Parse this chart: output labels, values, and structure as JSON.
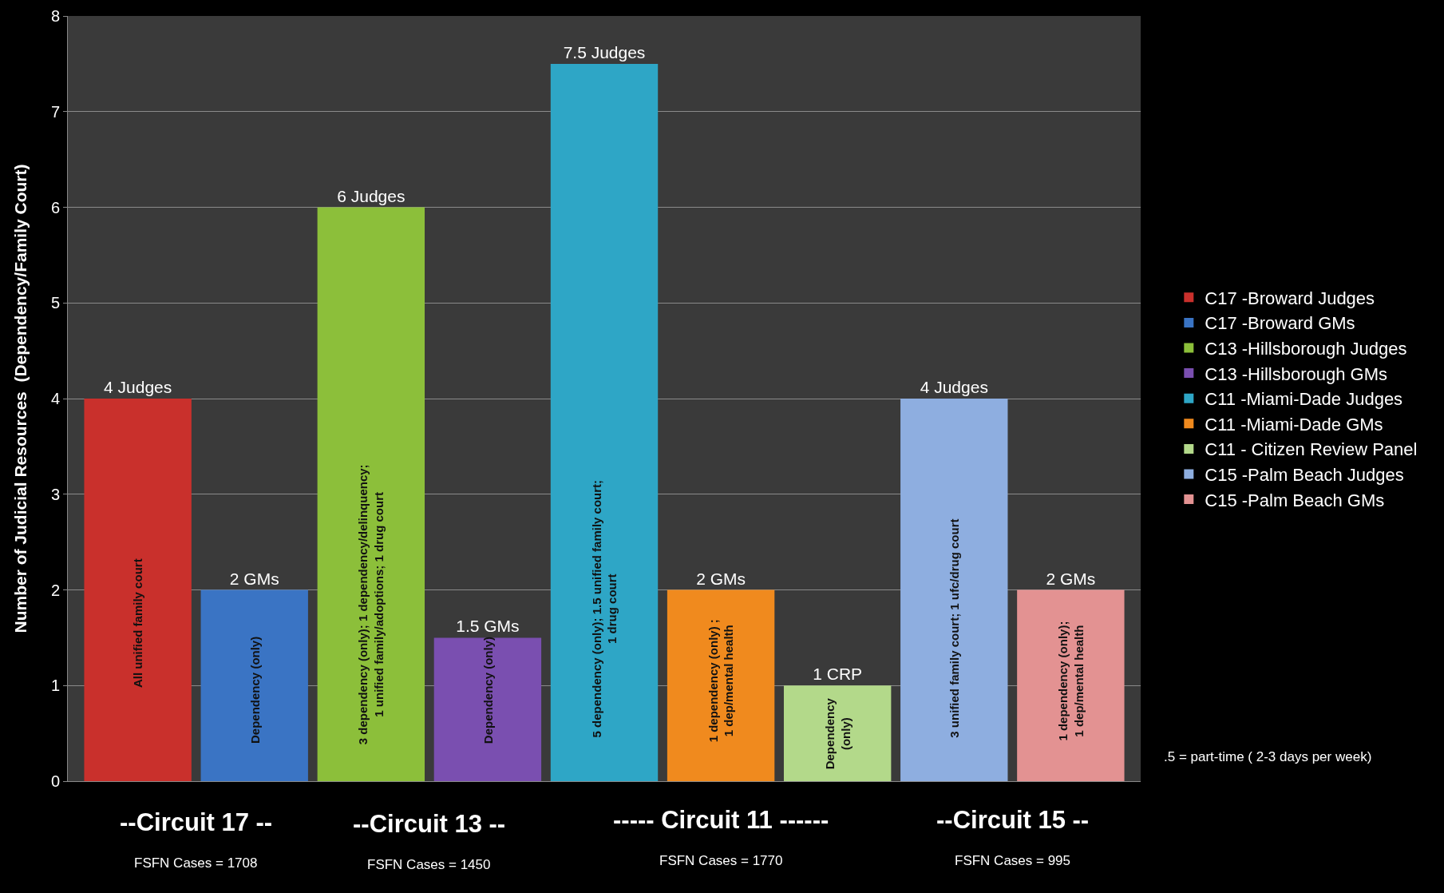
{
  "chart_data": {
    "type": "bar",
    "ylabel": "Number of Judicial Resources  (Dependency/Family Court)",
    "categories": [
      null,
      null,
      null,
      null,
      null,
      null,
      null,
      null,
      null
    ],
    "ylim": [
      0,
      8
    ],
    "yticks": [
      0,
      1,
      2,
      3,
      4,
      5,
      6,
      7,
      8
    ],
    "grid": "y",
    "legend": "right",
    "series": [
      {
        "name": "C17 -Broward Judges",
        "color": "#c9302c",
        "values": [
          4,
          null,
          null,
          null,
          null,
          null,
          null,
          null,
          null
        ],
        "value_labels": [
          "4 Judges",
          null,
          null,
          null,
          null,
          null,
          null,
          null,
          null
        ]
      },
      {
        "name": "C17 -Broward GMs",
        "color": "#3a74c4",
        "values": [
          null,
          2,
          null,
          null,
          null,
          null,
          null,
          null,
          null
        ],
        "value_labels": [
          null,
          "2 GMs",
          null,
          null,
          null,
          null,
          null,
          null,
          null
        ]
      },
      {
        "name": "C13 -Hillsborough Judges",
        "color": "#8cbf3a",
        "values": [
          null,
          null,
          6,
          null,
          null,
          null,
          null,
          null,
          null
        ],
        "value_labels": [
          null,
          null,
          "6 Judges",
          null,
          null,
          null,
          null,
          null,
          null
        ]
      },
      {
        "name": "C13 -Hillsborough GMs",
        "color": "#7a4fb0",
        "values": [
          null,
          null,
          null,
          1.5,
          null,
          null,
          null,
          null,
          null
        ],
        "value_labels": [
          null,
          null,
          null,
          "1.5 GMs",
          null,
          null,
          null,
          null,
          null
        ]
      },
      {
        "name": "C11 -Miami-Dade Judges",
        "color": "#2ea6c6",
        "values": [
          null,
          null,
          null,
          null,
          7.5,
          null,
          null,
          null,
          null
        ],
        "value_labels": [
          null,
          null,
          null,
          null,
          "7.5 Judges",
          null,
          null,
          null,
          null
        ]
      },
      {
        "name": "C11 -Miami-Dade GMs",
        "color": "#f08a1e",
        "values": [
          null,
          null,
          null,
          null,
          null,
          2,
          null,
          null,
          null
        ],
        "value_labels": [
          null,
          null,
          null,
          null,
          null,
          "2 GMs",
          null,
          null,
          null
        ]
      },
      {
        "name": "C11 - Citizen Review Panel",
        "color": "#b3d98a",
        "values": [
          null,
          null,
          null,
          null,
          null,
          null,
          1,
          null,
          null
        ],
        "value_labels": [
          null,
          null,
          null,
          null,
          null,
          null,
          "1 CRP",
          null,
          null
        ]
      },
      {
        "name": "C15 -Palm Beach Judges",
        "color": "#8eaee0",
        "values": [
          null,
          null,
          null,
          null,
          null,
          null,
          null,
          4,
          null
        ],
        "value_labels": [
          null,
          null,
          null,
          null,
          null,
          null,
          null,
          "4 Judges",
          null
        ]
      },
      {
        "name": "C15 -Palm Beach GMs",
        "color": "#e39292",
        "values": [
          null,
          null,
          null,
          null,
          null,
          null,
          null,
          null,
          2
        ],
        "value_labels": [
          null,
          null,
          null,
          null,
          null,
          null,
          null,
          null,
          "2 GMs"
        ]
      }
    ],
    "annotations": [
      "All unified family court",
      "Dependency (only)",
      "3 dependency (only); 1 dependency/delinquency;\n1 unified family/adoptions; 1 drug court",
      "Dependency (only)",
      "5 dependency (only); 1.5 unified family court;\n1 drug court",
      "1 dependency (only) ;\n1 dep/mental health",
      "Dependency\n(only)",
      "3 unified family court; 1 ufc/drug court",
      "1 dependency (only);\n1 dep/mental health",
      "--Circuit 17 --",
      "FSFN Cases = 1708",
      "--Circuit 13 --",
      "FSFN Cases = 1450",
      "----- Circuit 11 ------",
      "FSFN Cases = 1770",
      "--Circuit 15 --",
      "FSFN Cases = 995",
      ".5 = part-time ( 2-3 days per week)"
    ]
  }
}
